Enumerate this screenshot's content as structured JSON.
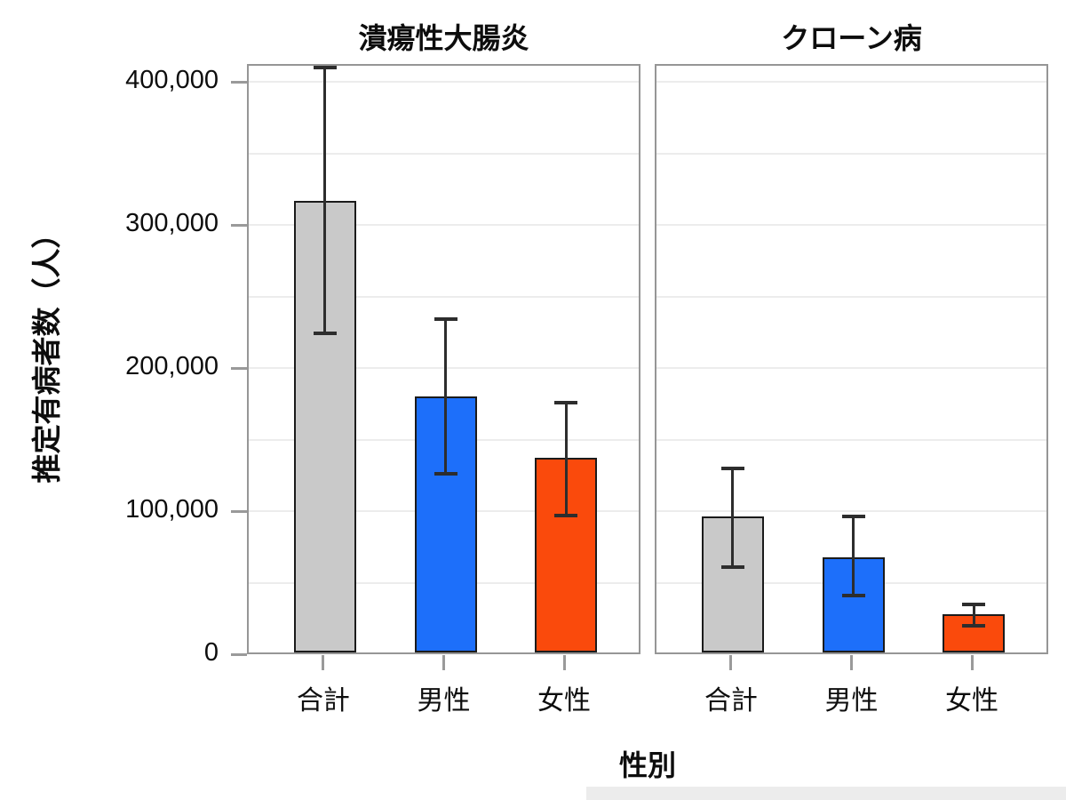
{
  "figure": {
    "ylabel": "推定有病者数（人）",
    "xlabel": "性別"
  },
  "chart_data": {
    "type": "bar",
    "layout": "two-panel grouped bar chart with error bars, shared y axis, grid on, no legend",
    "xlabel": "性別",
    "ylabel": "推定有病者数（人）",
    "ylim": [
      0,
      412000
    ],
    "yticks": [
      {
        "value": 0,
        "label": "0"
      },
      {
        "value": 100000,
        "label": "100,000"
      },
      {
        "value": 200000,
        "label": "200,000"
      },
      {
        "value": 300000,
        "label": "300,000"
      },
      {
        "value": 400000,
        "label": "400,000"
      }
    ],
    "minor_gridline_step": 50000,
    "categories": [
      "合計",
      "男性",
      "女性"
    ],
    "bar_colors": [
      "#c9c9c9",
      "#1d6ffa",
      "#fa4a0c"
    ],
    "bar_border_color": "#1b1b1b",
    "error_bar_color": "#2d2d2d",
    "panels": [
      {
        "title": "潰瘍性大腸炎",
        "bars": [
          {
            "category": "合計",
            "value": 317000,
            "ci_low": 224000,
            "ci_high": 410000
          },
          {
            "category": "男性",
            "value": 180000,
            "ci_low": 126000,
            "ci_high": 234000
          },
          {
            "category": "女性",
            "value": 137000,
            "ci_low": 97000,
            "ci_high": 176000
          }
        ]
      },
      {
        "title": "クローン病",
        "bars": [
          {
            "category": "合計",
            "value": 96000,
            "ci_low": 61000,
            "ci_high": 130000
          },
          {
            "category": "男性",
            "value": 68000,
            "ci_low": 41000,
            "ci_high": 96000
          },
          {
            "category": "女性",
            "value": 28000,
            "ci_low": 20000,
            "ci_high": 35000
          }
        ]
      }
    ]
  }
}
